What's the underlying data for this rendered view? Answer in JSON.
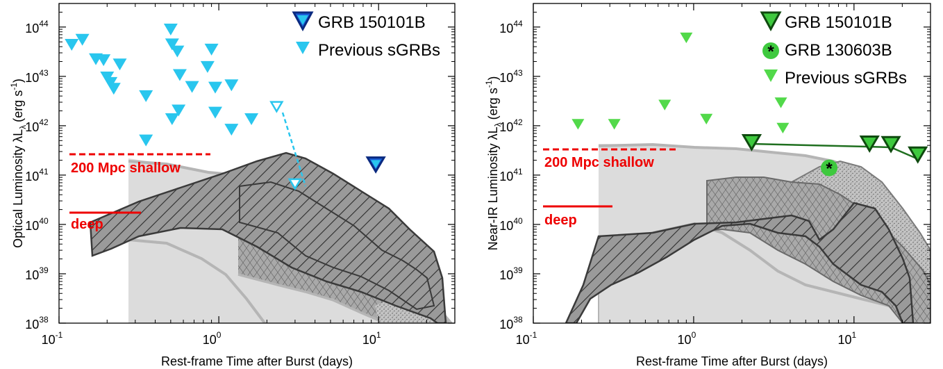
{
  "colors": {
    "optical_prev": "#29c6ee",
    "optical_grb": "#1a5fd8",
    "nir_prev": "#52d94a",
    "nir_grb": "#1f8f1f",
    "nir_130603": "#3ec93e",
    "limit_red": "#ee0000",
    "band_light": "#dcdcdc",
    "band_mid": "#a9a9a9",
    "band_dark": "#8a8a8a",
    "outline_light": "#b5b5b5",
    "outline_dark": "#3a3a3a"
  },
  "chart_data": [
    {
      "type": "scatter",
      "panel": "optical",
      "xlabel": "Rest-frame Time after Burst (days)",
      "ylabel": "Optical Luminosity λL",
      "ylabel_sub": "λ",
      "ylabel_unit": "(erg s",
      "ylabel_unit_sup": "-1",
      "ylabel_unit_end": ")",
      "xscale": "log",
      "yscale": "log",
      "xlim": [
        0.1,
        30
      ],
      "ylim": [
        1e+38,
        3e+44
      ],
      "xticks": [
        {
          "base": "10",
          "exp": "-1"
        },
        {
          "base": "10",
          "exp": "0"
        },
        {
          "base": "10",
          "exp": "1"
        }
      ],
      "yticks": [
        {
          "base": "10",
          "exp": "38"
        },
        {
          "base": "10",
          "exp": "39"
        },
        {
          "base": "10",
          "exp": "40"
        },
        {
          "base": "10",
          "exp": "41"
        },
        {
          "base": "10",
          "exp": "42"
        },
        {
          "base": "10",
          "exp": "43"
        },
        {
          "base": "10",
          "exp": "44"
        }
      ],
      "legend": [
        {
          "label": "GRB 150101B",
          "marker": "triangle-outline",
          "color": "optical_grb"
        },
        {
          "label": "Previous sGRBs",
          "marker": "triangle",
          "color": "optical_prev"
        }
      ],
      "annotations": {
        "shallow": "200 Mpc shallow",
        "deep": "deep"
      },
      "limits": {
        "shallow": {
          "x": [
            0.1,
            0.8
          ],
          "y": 3.2e+41
        },
        "deep": {
          "x": [
            0.1,
            0.3
          ],
          "y": 2.2e+40
        }
      },
      "series": [
        {
          "name": "GRB 150101B",
          "points": [
            [
              9.6,
              1.7e+41
            ]
          ]
        },
        {
          "name": "Previous sGRBs",
          "points": [
            [
              0.12,
              4.5e+43
            ],
            [
              0.14,
              5.7e+43
            ],
            [
              0.17,
              2.3e+43
            ],
            [
              0.19,
              2.2e+43
            ],
            [
              0.2,
              9.8e+42
            ],
            [
              0.21,
              7.6e+42
            ],
            [
              0.22,
              5.8e+42
            ],
            [
              0.24,
              1.8e+43
            ],
            [
              0.35,
              4.1e+42
            ],
            [
              0.35,
              5.2e+41
            ],
            [
              0.5,
              9.2e+43
            ],
            [
              0.51,
              4.6e+43
            ],
            [
              0.55,
              3.3e+43
            ],
            [
              0.51,
              1.4e+42
            ],
            [
              0.56,
              2.1e+42
            ],
            [
              0.57,
              1.1e+43
            ],
            [
              0.68,
              6.3e+42
            ],
            [
              0.85,
              1.6e+43
            ],
            [
              0.9,
              3.6e+43
            ],
            [
              0.95,
              1.9e+42
            ],
            [
              0.95,
              6.1e+42
            ],
            [
              1.2,
              6.8e+42
            ],
            [
              1.2,
              8.6e+41
            ],
            [
              1.6,
              1.4e+42
            ]
          ]
        },
        {
          "name": "hollow",
          "points": [
            [
              2.3,
              2.5e+42
            ],
            [
              3.0,
              6.8e+40
            ]
          ]
        }
      ]
    },
    {
      "type": "scatter",
      "panel": "nir",
      "xlabel": "Rest-frame Time after Burst (days)",
      "ylabel": "Near-IR Luminosity λL",
      "ylabel_sub": "λ",
      "ylabel_unit": "(erg s",
      "ylabel_unit_sup": "-1",
      "ylabel_unit_end": ")",
      "xscale": "log",
      "yscale": "log",
      "xlim": [
        0.1,
        30
      ],
      "ylim": [
        1e+38,
        3e+44
      ],
      "xticks": [
        {
          "base": "10",
          "exp": "-1"
        },
        {
          "base": "10",
          "exp": "0"
        },
        {
          "base": "10",
          "exp": "1"
        }
      ],
      "yticks": [
        {
          "base": "10",
          "exp": "38"
        },
        {
          "base": "10",
          "exp": "39"
        },
        {
          "base": "10",
          "exp": "40"
        },
        {
          "base": "10",
          "exp": "41"
        },
        {
          "base": "10",
          "exp": "42"
        },
        {
          "base": "10",
          "exp": "43"
        },
        {
          "base": "10",
          "exp": "44"
        }
      ],
      "legend": [
        {
          "label": "GRB 150101B",
          "marker": "triangle-outline",
          "color": "nir_grb"
        },
        {
          "label": "GRB 130603B",
          "marker": "circle-star",
          "color": "nir_130603"
        },
        {
          "label": "Previous sGRBs",
          "marker": "triangle",
          "color": "nir_prev"
        }
      ],
      "annotations": {
        "shallow": "200 Mpc shallow",
        "deep": "deep"
      },
      "limits": {
        "shallow": {
          "x": [
            0.1,
            0.8
          ],
          "y": 4e+41
        },
        "deep": {
          "x": [
            0.1,
            0.3
          ],
          "y": 2.7e+40
        }
      },
      "series": [
        {
          "name": "GRB 150101B",
          "points": [
            [
              2.3,
              4.8e+41
            ],
            [
              12.5,
              4.5e+41
            ],
            [
              17,
              4.4e+41
            ],
            [
              25,
              2.7e+41
            ]
          ]
        },
        {
          "name": "GRB 130603B",
          "points": [
            [
              7.0,
              1.4e+41
            ]
          ]
        },
        {
          "name": "Previous sGRBs",
          "points": [
            [
              0.19,
              1.1e+42
            ],
            [
              0.32,
              1.1e+42
            ],
            [
              0.66,
              2.7e+42
            ],
            [
              0.9,
              6.2e+43
            ],
            [
              1.2,
              1.4e+42
            ],
            [
              3.5,
              3e+42
            ],
            [
              3.6,
              9.2e+41
            ]
          ]
        }
      ]
    }
  ]
}
